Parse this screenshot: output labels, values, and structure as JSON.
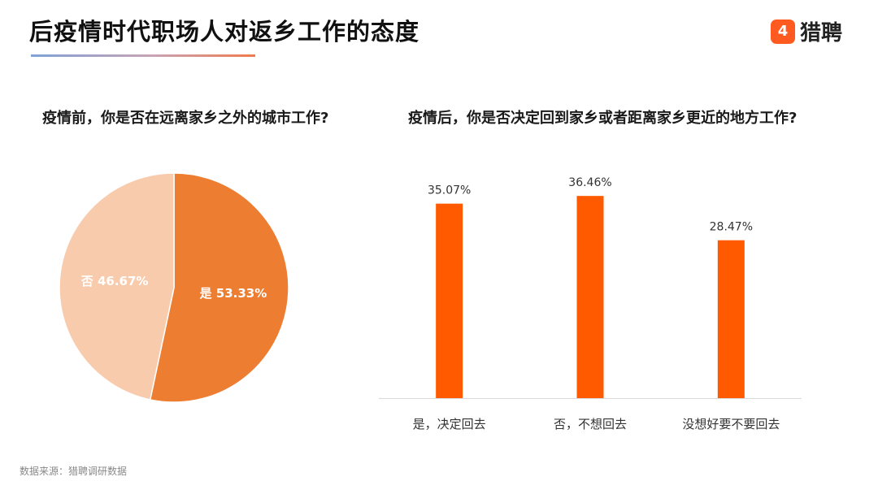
{
  "header": {
    "title": "后疫情时代职场人对返乡工作的态度",
    "brand_mark": "4",
    "brand_name": "猎聘",
    "brand_color": "#ff5a1f"
  },
  "chart_data": [
    {
      "type": "pie",
      "title": "疫情前，你是否在远离家乡之外的城市工作?",
      "slices": [
        {
          "label": "是",
          "value": 53.33,
          "display": "是 53.33%",
          "color": "#ed7d31"
        },
        {
          "label": "否",
          "value": 46.67,
          "display": "否 46.67%",
          "color": "#f8cbad"
        }
      ]
    },
    {
      "type": "bar",
      "title": "疫情后，你是否决定回到家乡或者距离家乡更近的地方工作?",
      "categories": [
        "是，决定回去",
        "否，不想回去",
        "没想好要不要回去"
      ],
      "values": [
        35.07,
        36.46,
        28.47
      ],
      "value_labels": [
        "35.07%",
        "36.46%",
        "28.47%"
      ],
      "ylim": [
        0,
        40
      ],
      "bar_color": "#ff5a00"
    }
  ],
  "footer": {
    "source": "数据来源：猎聘调研数据"
  }
}
